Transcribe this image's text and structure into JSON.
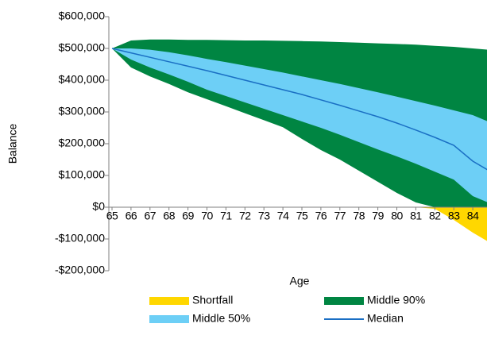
{
  "chart_data": {
    "type": "area",
    "x_label": "Age",
    "y_label": "Balance",
    "x": [
      65,
      66,
      67,
      68,
      69,
      70,
      71,
      72,
      73,
      74,
      75,
      76,
      77,
      78,
      79,
      80,
      81,
      82,
      83,
      84,
      85
    ],
    "xlim": [
      65,
      85
    ],
    "xticks": [
      65,
      66,
      67,
      68,
      69,
      70,
      71,
      72,
      73,
      74,
      75,
      76,
      77,
      78,
      79,
      80,
      81,
      82,
      83,
      84
    ],
    "ylim": [
      -200000,
      600000
    ],
    "yticks": [
      {
        "value": -200000,
        "label": "-$200,000"
      },
      {
        "value": -100000,
        "label": "-$100,000"
      },
      {
        "value": 0,
        "label": "$0"
      },
      {
        "value": 100000,
        "label": "$100,000"
      },
      {
        "value": 200000,
        "label": "$200,000"
      },
      {
        "value": 300000,
        "label": "$300,000"
      },
      {
        "value": 400000,
        "label": "$400,000"
      },
      {
        "value": 500000,
        "label": "$500,000"
      },
      {
        "value": 600000,
        "label": "$600,000"
      }
    ],
    "series": [
      {
        "name": "Shortfall",
        "color": "#ffd700",
        "values": [
          0,
          0,
          0,
          0,
          0,
          0,
          0,
          0,
          0,
          0,
          0,
          0,
          0,
          0,
          0,
          0,
          0,
          -5000,
          -40000,
          -80000,
          -115000
        ]
      },
      {
        "name": "Middle 90%",
        "color": "#008542",
        "upper": [
          500000,
          525000,
          528000,
          528000,
          527000,
          527000,
          526000,
          525000,
          525000,
          524000,
          523000,
          522000,
          520000,
          518000,
          516000,
          514000,
          512000,
          508000,
          505000,
          500000,
          495000
        ],
        "lower": [
          500000,
          440000,
          412000,
          388000,
          362000,
          340000,
          318000,
          296000,
          274000,
          252000,
          215000,
          180000,
          150000,
          115000,
          80000,
          45000,
          15000,
          0,
          0,
          0,
          0
        ]
      },
      {
        "name": "Middle 50%",
        "color": "#6dcff6",
        "upper": [
          500000,
          500000,
          496000,
          488000,
          478000,
          467000,
          457000,
          446000,
          435000,
          424000,
          412000,
          400000,
          388000,
          375000,
          362000,
          348000,
          334000,
          320000,
          305000,
          290000,
          265000
        ],
        "lower": [
          500000,
          465000,
          440000,
          418000,
          395000,
          370000,
          350000,
          330000,
          310000,
          290000,
          270000,
          250000,
          228000,
          205000,
          182000,
          160000,
          137000,
          112000,
          87000,
          35000,
          10000
        ]
      },
      {
        "name": "Median",
        "color": "#1a6fc4",
        "values": [
          500000,
          486000,
          472000,
          458000,
          444000,
          430000,
          415000,
          400000,
          385000,
          370000,
          355000,
          338000,
          321000,
          303000,
          285000,
          265000,
          243000,
          220000,
          195000,
          145000,
          110000
        ]
      }
    ]
  }
}
